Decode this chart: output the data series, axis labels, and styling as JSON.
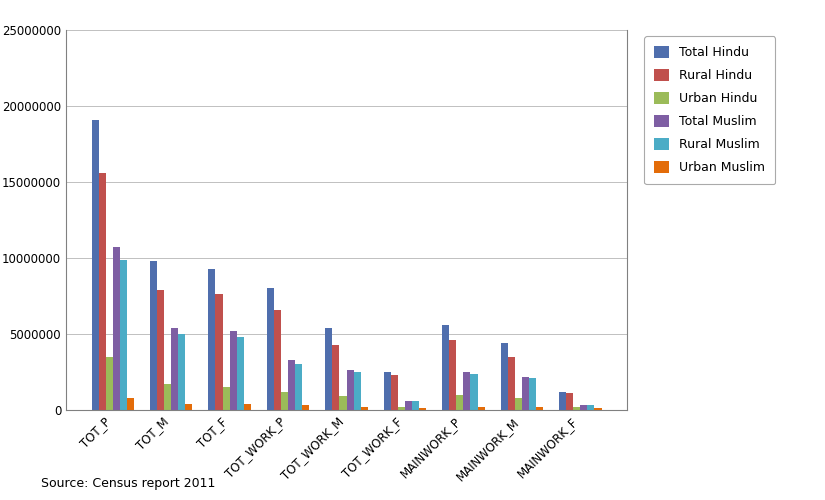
{
  "categories": [
    "TOT_P",
    "TOT_M",
    "TOT_F",
    "TOT_WORK_P",
    "TOT_WORK_M",
    "TOT_WORK_F",
    "MAINWORK_P",
    "MAINWORK_M",
    "MAINWORK_F"
  ],
  "series": {
    "Total Hindu": [
      19100000,
      9800000,
      9300000,
      8000000,
      5400000,
      2500000,
      5600000,
      4400000,
      1200000
    ],
    "Rural Hindu": [
      15600000,
      7900000,
      7600000,
      6600000,
      4300000,
      2300000,
      4600000,
      3500000,
      1100000
    ],
    "Urban Hindu": [
      3500000,
      1700000,
      1500000,
      1200000,
      900000,
      200000,
      1000000,
      800000,
      200000
    ],
    "Total Muslim": [
      10700000,
      5400000,
      5200000,
      3300000,
      2600000,
      600000,
      2500000,
      2200000,
      300000
    ],
    "Rural Muslim": [
      9900000,
      5000000,
      4800000,
      3000000,
      2500000,
      600000,
      2400000,
      2100000,
      300000
    ],
    "Urban Muslim": [
      800000,
      400000,
      400000,
      300000,
      200000,
      100000,
      200000,
      200000,
      100000
    ]
  },
  "colors": {
    "Total Hindu": "#4F6EAD",
    "Rural Hindu": "#C0504D",
    "Urban Hindu": "#9BBB59",
    "Total Muslim": "#7E5EA3",
    "Rural Muslim": "#4BACC6",
    "Urban Muslim": "#E36C09"
  },
  "ylim": [
    0,
    25000000
  ],
  "yticks": [
    0,
    5000000,
    10000000,
    15000000,
    20000000,
    25000000
  ],
  "source_text": "Source: Census report 2011",
  "background_color": "#FFFFFF"
}
